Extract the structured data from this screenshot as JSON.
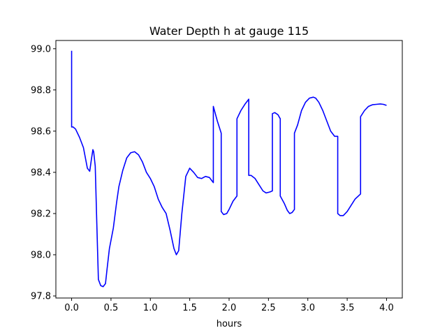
{
  "chart_data": {
    "type": "line",
    "title": "Water Depth h at gauge 115",
    "xlabel": "hours",
    "ylabel": "",
    "xlim": [
      -0.2,
      4.2
    ],
    "ylim": [
      97.79,
      99.04
    ],
    "xticks": [
      0.0,
      0.5,
      1.0,
      1.5,
      2.0,
      2.5,
      3.0,
      3.5,
      4.0
    ],
    "xtick_labels": [
      "0.0",
      "0.5",
      "1.0",
      "1.5",
      "2.0",
      "2.5",
      "3.0",
      "3.5",
      "4.0"
    ],
    "yticks": [
      97.8,
      98.0,
      98.2,
      98.4,
      98.6,
      98.8,
      99.0
    ],
    "ytick_labels": [
      "97.8",
      "98.0",
      "98.2",
      "98.4",
      "98.6",
      "98.8",
      "99.0"
    ],
    "grid": false,
    "series": [
      {
        "color": "#0000ff",
        "x": [
          0.0,
          0.0,
          0.02,
          0.05,
          0.1,
          0.15,
          0.2,
          0.23,
          0.25,
          0.27,
          0.28,
          0.3,
          0.32,
          0.34,
          0.37,
          0.4,
          0.43,
          0.45,
          0.48,
          0.5,
          0.53,
          0.57,
          0.6,
          0.65,
          0.7,
          0.75,
          0.8,
          0.85,
          0.9,
          0.95,
          1.0,
          1.05,
          1.1,
          1.15,
          1.2,
          1.25,
          1.3,
          1.33,
          1.36,
          1.4,
          1.45,
          1.5,
          1.55,
          1.6,
          1.65,
          1.7,
          1.75,
          1.78,
          1.8,
          1.8,
          1.85,
          1.9,
          1.9,
          1.93,
          1.97,
          2.0,
          2.05,
          2.1,
          2.1,
          2.15,
          2.2,
          2.25,
          2.25,
          2.28,
          2.33,
          2.38,
          2.43,
          2.47,
          2.52,
          2.55,
          2.55,
          2.58,
          2.62,
          2.65,
          2.65,
          2.7,
          2.74,
          2.77,
          2.8,
          2.83,
          2.83,
          2.87,
          2.92,
          2.97,
          3.02,
          3.07,
          3.1,
          3.14,
          3.19,
          3.24,
          3.29,
          3.34,
          3.38,
          3.38,
          3.41,
          3.45,
          3.5,
          3.55,
          3.6,
          3.67,
          3.67,
          3.72,
          3.77,
          3.82,
          3.87,
          3.92,
          3.96,
          4.0
        ],
        "y": [
          98.99,
          98.62,
          98.62,
          98.61,
          98.57,
          98.52,
          98.42,
          98.405,
          98.46,
          98.51,
          98.5,
          98.43,
          98.15,
          97.88,
          97.85,
          97.845,
          97.86,
          97.93,
          98.03,
          98.07,
          98.13,
          98.25,
          98.33,
          98.41,
          98.47,
          98.495,
          98.5,
          98.485,
          98.45,
          98.4,
          98.37,
          98.33,
          98.27,
          98.23,
          98.2,
          98.12,
          98.03,
          98.0,
          98.02,
          98.2,
          98.38,
          98.42,
          98.4,
          98.375,
          98.37,
          98.38,
          98.375,
          98.36,
          98.35,
          98.72,
          98.65,
          98.59,
          98.21,
          98.195,
          98.2,
          98.22,
          98.26,
          98.285,
          98.66,
          98.7,
          98.73,
          98.755,
          98.385,
          98.385,
          98.37,
          98.34,
          98.31,
          98.3,
          98.305,
          98.31,
          98.685,
          98.69,
          98.68,
          98.66,
          98.285,
          98.25,
          98.215,
          98.2,
          98.205,
          98.22,
          98.59,
          98.63,
          98.7,
          98.74,
          98.76,
          98.765,
          98.76,
          98.74,
          98.7,
          98.65,
          98.6,
          98.575,
          98.575,
          98.2,
          98.19,
          98.19,
          98.21,
          98.24,
          98.27,
          98.295,
          98.67,
          98.7,
          98.72,
          98.728,
          98.73,
          98.732,
          98.73,
          98.725
        ]
      }
    ]
  }
}
